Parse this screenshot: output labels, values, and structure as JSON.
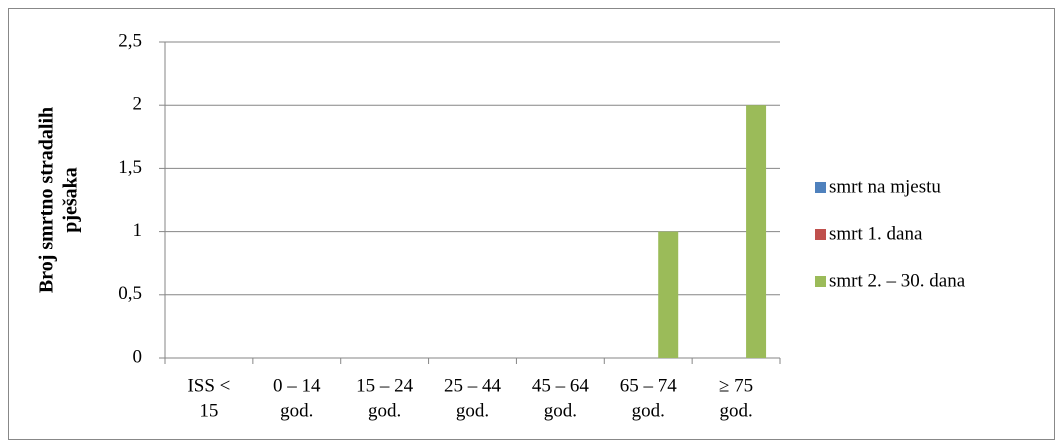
{
  "chart_data": {
    "type": "bar",
    "y_label": [
      "Broj smrtno stradalih",
      "pješaka"
    ],
    "categories": [
      [
        "ISS <",
        "15"
      ],
      [
        "0 – 14",
        "god."
      ],
      [
        "15 – 24",
        "god."
      ],
      [
        "25 – 44",
        "god."
      ],
      [
        "45 – 64",
        "god."
      ],
      [
        "65 – 74",
        "god."
      ],
      [
        "≥ 75",
        "god."
      ]
    ],
    "series": [
      {
        "name": "smrt na mjestu",
        "color": "#4f81bd",
        "values": [
          0,
          0,
          0,
          0,
          0,
          0,
          0
        ]
      },
      {
        "name": "smrt 1. dana",
        "color": "#c0504d",
        "values": [
          0,
          0,
          0,
          0,
          0,
          0,
          0
        ]
      },
      {
        "name": "smrt 2.  –  30. dana",
        "color": "#9bbb59",
        "values": [
          0,
          0,
          0,
          0,
          0,
          1,
          2
        ]
      }
    ],
    "ylim": [
      0,
      2.5
    ],
    "yticks": [
      0,
      {
        "value": 0.5,
        "label": "0,5"
      },
      1,
      {
        "value": 1.5,
        "label": "1,5"
      },
      2,
      {
        "value": 2.5,
        "label": "2,5"
      }
    ],
    "grid": true,
    "legend": "right"
  }
}
